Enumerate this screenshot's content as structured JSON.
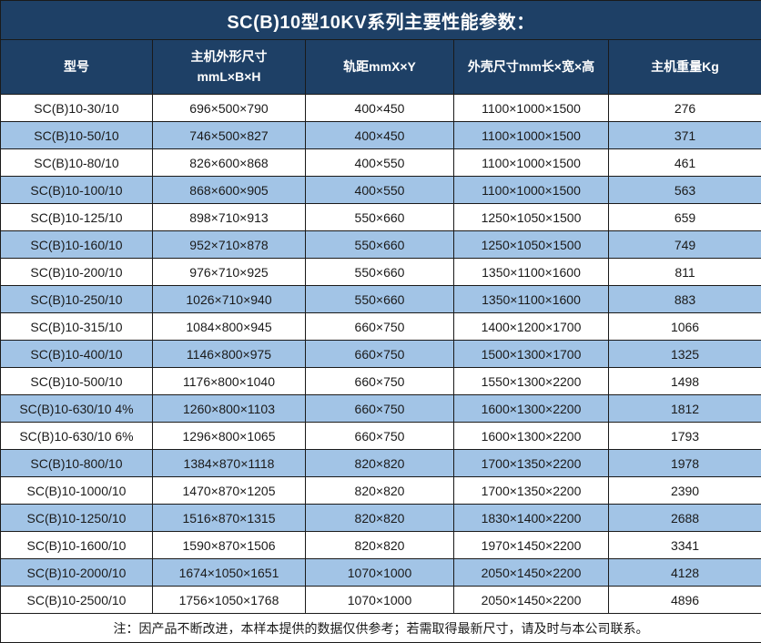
{
  "title": "SC(B)10型10KV系列主要性能参数：",
  "colors": {
    "header_bg": "#1e4066",
    "header_text": "#ffffff",
    "row_alt_bg": "#a2c4e6",
    "row_bg": "#ffffff",
    "grid_line": "#1a1a1a",
    "cell_text": "#1a1a1a"
  },
  "table": {
    "headers": [
      {
        "line1": "型号",
        "line2": ""
      },
      {
        "line1": "主机外形尺寸",
        "line2": "mmL×B×H"
      },
      {
        "line1": "轨距mmX×Y",
        "line2": ""
      },
      {
        "line1": "外壳尺寸mm长×宽×高",
        "line2": ""
      },
      {
        "line1": "主机重量Kg",
        "line2": ""
      }
    ],
    "rows": [
      [
        "SC(B)10-30/10",
        "696×500×790",
        "400×450",
        "1100×1000×1500",
        "276"
      ],
      [
        "SC(B)10-50/10",
        "746×500×827",
        "400×450",
        "1100×1000×1500",
        "371"
      ],
      [
        "SC(B)10-80/10",
        "826×600×868",
        "400×550",
        "1100×1000×1500",
        "461"
      ],
      [
        "SC(B)10-100/10",
        "868×600×905",
        "400×550",
        "1100×1000×1500",
        "563"
      ],
      [
        "SC(B)10-125/10",
        "898×710×913",
        "550×660",
        "1250×1050×1500",
        "659"
      ],
      [
        "SC(B)10-160/10",
        "952×710×878",
        "550×660",
        "1250×1050×1500",
        "749"
      ],
      [
        "SC(B)10-200/10",
        "976×710×925",
        "550×660",
        "1350×1100×1600",
        "811"
      ],
      [
        "SC(B)10-250/10",
        "1026×710×940",
        "550×660",
        "1350×1100×1600",
        "883"
      ],
      [
        "SC(B)10-315/10",
        "1084×800×945",
        "660×750",
        "1400×1200×1700",
        "1066"
      ],
      [
        "SC(B)10-400/10",
        "1146×800×975",
        "660×750",
        "1500×1300×1700",
        "1325"
      ],
      [
        "SC(B)10-500/10",
        "1176×800×1040",
        "660×750",
        "1550×1300×2200",
        "1498"
      ],
      [
        "SC(B)10-630/10 4%",
        "1260×800×1103",
        "660×750",
        "1600×1300×2200",
        "1812"
      ],
      [
        "SC(B)10-630/10 6%",
        "1296×800×1065",
        "660×750",
        "1600×1300×2200",
        "1793"
      ],
      [
        "SC(B)10-800/10",
        "1384×870×1118",
        "820×820",
        "1700×1350×2200",
        "1978"
      ],
      [
        "SC(B)10-1000/10",
        "1470×870×1205",
        "820×820",
        "1700×1350×2200",
        "2390"
      ],
      [
        "SC(B)10-1250/10",
        "1516×870×1315",
        "820×820",
        "1830×1400×2200",
        "2688"
      ],
      [
        "SC(B)10-1600/10",
        "1590×870×1506",
        "820×820",
        "1970×1450×2200",
        "3341"
      ],
      [
        "SC(B)10-2000/10",
        "1674×1050×1651",
        "1070×1000",
        "2050×1450×2200",
        "4128"
      ],
      [
        "SC(B)10-2500/10",
        "1756×1050×1768",
        "1070×1000",
        "2050×1450×2200",
        "4896"
      ]
    ]
  },
  "footnote": "注：因产品不断改进，本样本提供的数据仅供参考；若需取得最新尺寸，请及时与本公司联系。"
}
